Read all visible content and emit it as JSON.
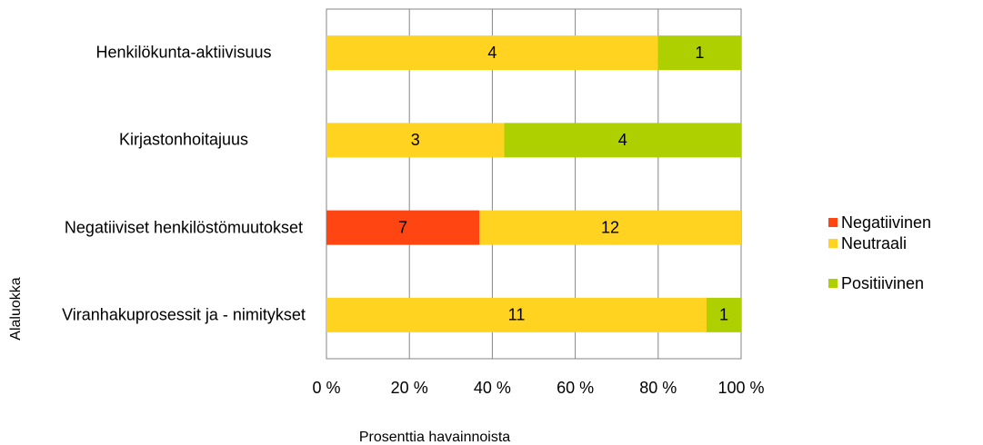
{
  "chart_data": {
    "type": "percent_stacked_barh",
    "categories": [
      "Henkilökunta-aktiivisuus",
      "Kirjastonhoitajuus",
      "Negatiiviset henkilöstömuutokset",
      "Viranhakuprosessit ja - nimitykset"
    ],
    "series": [
      {
        "name": "Negatiivinen",
        "color": "#ff4512",
        "values": [
          null,
          null,
          7,
          null
        ]
      },
      {
        "name": "Neutraali",
        "color": "#ffd320",
        "values": [
          4,
          3,
          12,
          11
        ]
      },
      {
        "name": "Positiivinen",
        "color": "#aecf00",
        "values": [
          1,
          4,
          null,
          1
        ]
      }
    ],
    "xlim": [
      0,
      100
    ],
    "xticks": [
      {
        "value": 0,
        "label": "0 %"
      },
      {
        "value": 20,
        "label": "20 %"
      },
      {
        "value": 40,
        "label": "40 %"
      },
      {
        "value": 60,
        "label": "60 %"
      },
      {
        "value": 80,
        "label": "80 %"
      },
      {
        "value": 100,
        "label": "100 %"
      }
    ],
    "xlabel": "Prosenttia havainnoista",
    "ylabel": "Alaluokka",
    "grid": true,
    "legend": "right"
  }
}
